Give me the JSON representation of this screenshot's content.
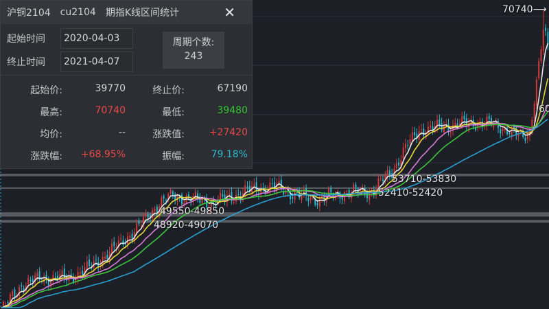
{
  "panel": {
    "title_parts": [
      "沪铜2104",
      "cu2104",
      "期指K线区间统计"
    ],
    "close_icon": "close-icon",
    "start_label": "起始时间",
    "start_value": "2020-04-03",
    "end_label": "终止时间",
    "end_value": "2021-04-07",
    "count_label": "周期个数:",
    "count_value": "243",
    "stats": [
      {
        "label": "起始价:",
        "value": "39770",
        "color": "#d4d4d4"
      },
      {
        "label": "终止价:",
        "value": "67190",
        "color": "#d4d4d4"
      },
      {
        "label": "最高:",
        "value": "70740",
        "color": "#e84a4a"
      },
      {
        "label": "最低:",
        "value": "39480",
        "color": "#2fc52f"
      },
      {
        "label": "均价:",
        "value": "--",
        "color": "#d4d4d4"
      },
      {
        "label": "涨跌值:",
        "value": "+27420",
        "color": "#e84a4a"
      },
      {
        "label": "涨跌幅:",
        "value": "+68.95%",
        "color": "#e84a4a"
      },
      {
        "label": "振幅:",
        "value": "79.18%",
        "color": "#2bb9cf"
      }
    ]
  },
  "chart": {
    "high_marker": "70740⟶",
    "levels": [
      {
        "text": "53710-53830",
        "low": 53710,
        "high": 53830
      },
      {
        "text": "52410-52420",
        "low": 52410,
        "high": 52420
      },
      {
        "text": "49550-49850",
        "low": 49550,
        "high": 49850
      },
      {
        "text": "48920-49070",
        "low": 48920,
        "high": 49070
      }
    ],
    "partial_label": "60"
  },
  "chart_data": {
    "type": "candlestick",
    "bars": 243,
    "high": 70740,
    "low": 39480,
    "close_keypoints": [
      {
        "x": 0,
        "close": 39770
      },
      {
        "x": 9,
        "close": 42430
      },
      {
        "x": 18,
        "close": 43140
      },
      {
        "x": 30,
        "close": 43140
      },
      {
        "x": 39,
        "close": 44200
      },
      {
        "x": 49,
        "close": 45970
      },
      {
        "x": 61,
        "close": 48450
      },
      {
        "x": 70,
        "close": 50920
      },
      {
        "x": 76,
        "close": 51630
      },
      {
        "x": 85,
        "close": 51280
      },
      {
        "x": 94,
        "close": 50920
      },
      {
        "x": 103,
        "close": 51630
      },
      {
        "x": 112,
        "close": 52340
      },
      {
        "x": 122,
        "close": 52550
      },
      {
        "x": 131,
        "close": 51630
      },
      {
        "x": 140,
        "close": 51280
      },
      {
        "x": 152,
        "close": 51980
      },
      {
        "x": 164,
        "close": 52130
      },
      {
        "x": 173,
        "close": 54110
      },
      {
        "x": 179,
        "close": 56590
      },
      {
        "x": 185,
        "close": 58360
      },
      {
        "x": 194,
        "close": 58710
      },
      {
        "x": 204,
        "close": 59060
      },
      {
        "x": 213,
        "close": 59200
      },
      {
        "x": 222,
        "close": 58710
      },
      {
        "x": 231,
        "close": 57650
      },
      {
        "x": 234,
        "close": 58360
      },
      {
        "x": 237,
        "close": 63310
      },
      {
        "x": 240,
        "close": 68560
      },
      {
        "x": 242,
        "close": 67190
      }
    ],
    "moving_averages": [
      {
        "period": 5,
        "color": "#e8e8e8"
      },
      {
        "period": 10,
        "color": "#e6d83a"
      },
      {
        "period": 20,
        "color": "#d77bd8"
      },
      {
        "period": 30,
        "color": "#3cc43c"
      },
      {
        "period": 60,
        "color": "#2a9fd0"
      }
    ],
    "up_color": "#d23c3c",
    "down_color": "#2bb9cf",
    "grid": true
  }
}
